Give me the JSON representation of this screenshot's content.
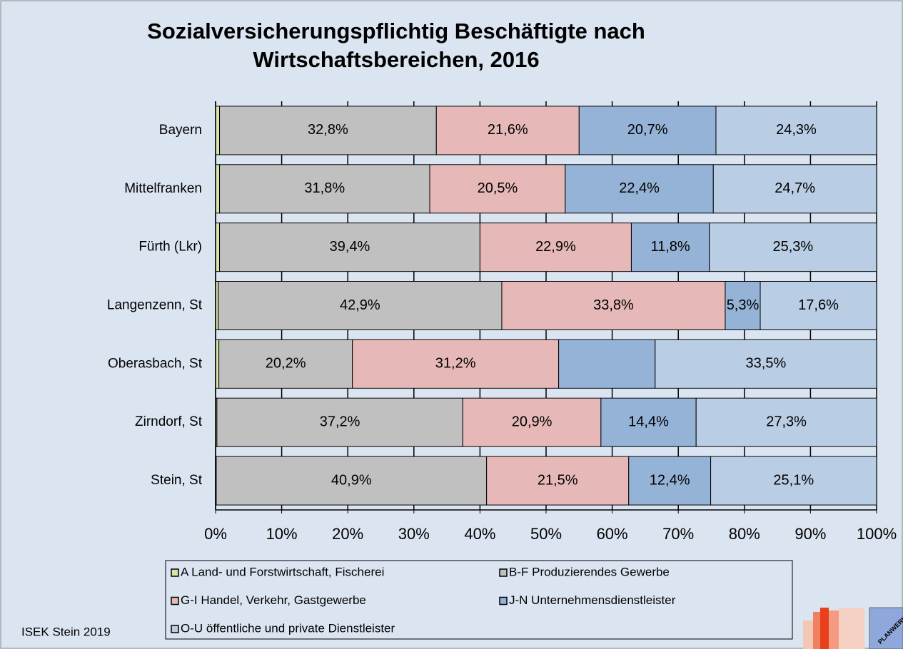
{
  "chart_data": {
    "type": "stacked-barh",
    "title": "Sozialversicherungspflichtig Beschäftigte nach Wirtschaftsbereichen, 2016",
    "categories": [
      "Bayern",
      "Mittelfranken",
      "Fürth (Lkr)",
      "Langenzenn, St",
      "Oberasbach, St",
      "Zirndorf, St",
      "Stein, St"
    ],
    "series": [
      {
        "name": "A Land- und Forstwirtschaft, Fischerei",
        "color": "#d7e4a8",
        "values": [
          0.6,
          0.6,
          0.6,
          0.4,
          0.5,
          0.2,
          0.1
        ]
      },
      {
        "name": "B-F Produzierendes Gewerbe",
        "color": "#c0c0c0",
        "values": [
          32.8,
          31.8,
          39.4,
          42.9,
          20.2,
          37.2,
          40.9
        ],
        "value_labels": [
          "32,8%",
          "31,8%",
          "39,4%",
          "42,9%",
          "20,2%",
          "37,2%",
          "40,9%"
        ]
      },
      {
        "name": "G-I Handel, Verkehr, Gastgewerbe",
        "color": "#e6b9b8",
        "values": [
          21.6,
          20.5,
          22.9,
          33.8,
          31.2,
          20.9,
          21.5
        ],
        "value_labels": [
          "21,6%",
          "20,5%",
          "22,9%",
          "33,8%",
          "31,2%",
          "20,9%",
          "21,5%"
        ]
      },
      {
        "name": "J-N Unternehmensdienstleister",
        "color": "#95b3d7",
        "values": [
          20.7,
          22.4,
          11.8,
          5.3,
          14.6,
          14.4,
          12.4
        ],
        "value_labels": [
          "20,7%",
          "22,4%",
          "11,8%",
          "5,3%",
          null,
          "14,4%",
          "12,4%"
        ]
      },
      {
        "name": "O-U öffentliche und private Dienstleister",
        "color": "#b9cde5",
        "values": [
          24.3,
          24.7,
          25.3,
          17.6,
          33.5,
          27.3,
          25.1
        ],
        "value_labels": [
          "24,3%",
          "24,7%",
          "25,3%",
          "17,6%",
          "33,5%",
          "27,3%",
          "25,1%"
        ]
      }
    ],
    "xlim": [
      0,
      100
    ],
    "xticks": [
      {
        "value": 0,
        "label": "0%"
      },
      {
        "value": 10,
        "label": "10%"
      },
      {
        "value": 20,
        "label": "20%"
      },
      {
        "value": 30,
        "label": "30%"
      },
      {
        "value": 40,
        "label": "40%"
      },
      {
        "value": 50,
        "label": "50%"
      },
      {
        "value": 60,
        "label": "60%"
      },
      {
        "value": 70,
        "label": "70%"
      },
      {
        "value": 80,
        "label": "80%"
      },
      {
        "value": 90,
        "label": "90%"
      },
      {
        "value": 100,
        "label": "100%"
      }
    ],
    "grid": true,
    "legend": "bottom"
  },
  "footer": {
    "note": "ISEK Stein 2019",
    "logo": "PLANWERK"
  }
}
